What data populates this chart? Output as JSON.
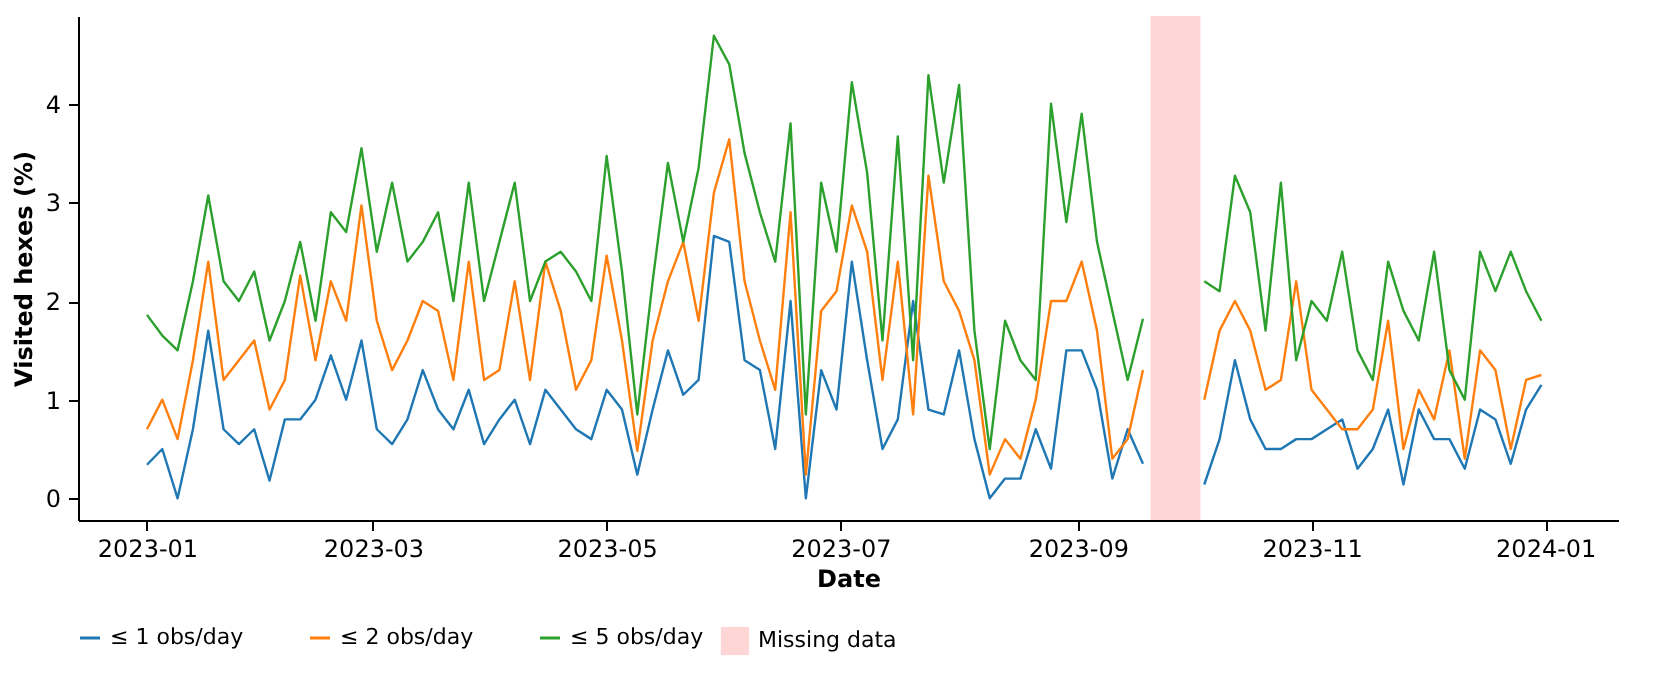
{
  "chart_data": {
    "type": "line",
    "xlabel": "Date",
    "ylabel": "Visited hexes (%)",
    "x": [
      "2023-01-01",
      "2023-01-05",
      "2023-01-09",
      "2023-01-13",
      "2023-01-17",
      "2023-01-21",
      "2023-01-25",
      "2023-01-29",
      "2023-02-02",
      "2023-02-06",
      "2023-02-10",
      "2023-02-14",
      "2023-02-18",
      "2023-02-22",
      "2023-02-26",
      "2023-03-02",
      "2023-03-06",
      "2023-03-10",
      "2023-03-14",
      "2023-03-18",
      "2023-03-22",
      "2023-03-26",
      "2023-03-30",
      "2023-04-03",
      "2023-04-07",
      "2023-04-11",
      "2023-04-15",
      "2023-04-19",
      "2023-04-23",
      "2023-04-27",
      "2023-05-01",
      "2023-05-05",
      "2023-05-09",
      "2023-05-13",
      "2023-05-17",
      "2023-05-21",
      "2023-05-25",
      "2023-05-29",
      "2023-06-02",
      "2023-06-06",
      "2023-06-10",
      "2023-06-14",
      "2023-06-18",
      "2023-06-22",
      "2023-06-26",
      "2023-06-30",
      "2023-07-04",
      "2023-07-08",
      "2023-07-12",
      "2023-07-16",
      "2023-07-20",
      "2023-07-24",
      "2023-07-28",
      "2023-08-01",
      "2023-08-05",
      "2023-08-09",
      "2023-08-13",
      "2023-08-17",
      "2023-08-21",
      "2023-08-25",
      "2023-08-29",
      "2023-09-02",
      "2023-09-06",
      "2023-09-10",
      "2023-09-14",
      "2023-09-18",
      "2023-09-22",
      "2023-10-04",
      "2023-10-08",
      "2023-10-12",
      "2023-10-16",
      "2023-10-20",
      "2023-10-24",
      "2023-10-28",
      "2023-11-01",
      "2023-11-05",
      "2023-11-09",
      "2023-11-13",
      "2023-11-17",
      "2023-11-21",
      "2023-11-25",
      "2023-11-29",
      "2023-12-03",
      "2023-12-07",
      "2023-12-11",
      "2023-12-15",
      "2023-12-19",
      "2023-12-23",
      "2023-12-27",
      "2023-12-31"
    ],
    "series": [
      {
        "name": "≤ 1 obs/day",
        "color": "#1f77b4",
        "values": [
          0.34,
          0.5,
          0.0,
          0.7,
          1.7,
          0.7,
          0.55,
          0.7,
          0.18,
          0.8,
          0.8,
          1.0,
          1.45,
          1.0,
          1.6,
          0.7,
          0.55,
          0.8,
          1.3,
          0.9,
          0.7,
          1.1,
          0.55,
          0.8,
          1.0,
          0.55,
          1.1,
          0.9,
          0.7,
          0.6,
          1.1,
          0.9,
          0.24,
          0.9,
          1.5,
          1.05,
          1.2,
          2.66,
          2.6,
          1.4,
          1.3,
          0.5,
          2.0,
          0.0,
          1.3,
          0.9,
          2.4,
          1.4,
          0.5,
          0.8,
          2.0,
          0.9,
          0.85,
          1.5,
          0.6,
          0.0,
          0.2,
          0.2,
          0.7,
          0.3,
          1.5,
          1.5,
          1.1,
          0.2,
          0.7,
          0.35,
          null,
          0.14,
          0.6,
          1.4,
          0.8,
          0.5,
          0.5,
          0.6,
          0.6,
          0.7,
          0.8,
          0.3,
          0.5,
          0.9,
          0.14,
          0.9,
          0.6,
          0.6,
          0.3,
          0.9,
          0.8,
          0.35,
          0.9,
          1.15
        ]
      },
      {
        "name": "≤ 2 obs/day",
        "color": "#ff7f0e",
        "values": [
          0.7,
          1.0,
          0.6,
          1.4,
          2.4,
          1.2,
          1.4,
          1.6,
          0.9,
          1.2,
          2.26,
          1.4,
          2.2,
          1.8,
          2.97,
          1.8,
          1.3,
          1.6,
          2.0,
          1.9,
          1.2,
          2.4,
          1.2,
          1.3,
          2.2,
          1.2,
          2.4,
          1.9,
          1.1,
          1.4,
          2.46,
          1.6,
          0.48,
          1.6,
          2.2,
          2.6,
          1.8,
          3.1,
          3.64,
          2.2,
          1.6,
          1.1,
          2.9,
          0.24,
          1.9,
          2.1,
          2.97,
          2.5,
          1.2,
          2.4,
          0.85,
          3.27,
          2.2,
          1.9,
          1.4,
          0.24,
          0.6,
          0.4,
          1.0,
          2.0,
          2.0,
          2.4,
          1.7,
          0.4,
          0.6,
          1.3,
          null,
          1.0,
          1.7,
          2.0,
          1.7,
          1.1,
          1.2,
          2.2,
          1.1,
          0.9,
          0.7,
          0.7,
          0.9,
          1.8,
          0.5,
          1.1,
          0.8,
          1.5,
          0.4,
          1.5,
          1.3,
          0.5,
          1.2,
          1.25
        ]
      },
      {
        "name": "≤ 5 obs/day",
        "color": "#2ca02c",
        "values": [
          1.86,
          1.65,
          1.5,
          2.2,
          3.07,
          2.2,
          2.0,
          2.3,
          1.6,
          2.0,
          2.6,
          1.8,
          2.9,
          2.7,
          3.55,
          2.5,
          3.2,
          2.4,
          2.6,
          2.9,
          2.0,
          3.2,
          2.0,
          2.6,
          3.2,
          2.0,
          2.4,
          2.5,
          2.3,
          2.0,
          3.47,
          2.3,
          0.85,
          2.2,
          3.4,
          2.6,
          3.35,
          4.69,
          4.4,
          3.5,
          2.9,
          2.4,
          3.8,
          0.85,
          3.2,
          2.5,
          4.22,
          3.3,
          1.6,
          3.67,
          1.4,
          4.29,
          3.2,
          4.19,
          1.7,
          0.5,
          1.8,
          1.4,
          1.2,
          4.0,
          2.8,
          3.9,
          2.6,
          1.9,
          1.2,
          1.82,
          null,
          2.2,
          2.1,
          3.27,
          2.9,
          1.7,
          3.2,
          1.4,
          2.0,
          1.8,
          2.5,
          1.5,
          1.2,
          2.4,
          1.9,
          1.6,
          2.5,
          1.3,
          1.0,
          2.5,
          2.1,
          2.5,
          2.1,
          1.8
        ]
      }
    ],
    "bands": [
      {
        "axis": "x",
        "from": "2023-09-20",
        "to": "2023-10-03",
        "label": "Missing data",
        "color": "#ffd6d6"
      }
    ],
    "xlim": [
      "2022-12-14",
      "2024-01-20"
    ],
    "xticks": [
      "2023-01",
      "2023-03",
      "2023-05",
      "2023-07",
      "2023-09",
      "2023-11",
      "2024-01"
    ],
    "ylim": [
      -0.22,
      4.89
    ],
    "yticks": [
      0,
      1,
      2,
      3,
      4
    ],
    "grid": false,
    "legend": "bottom"
  }
}
